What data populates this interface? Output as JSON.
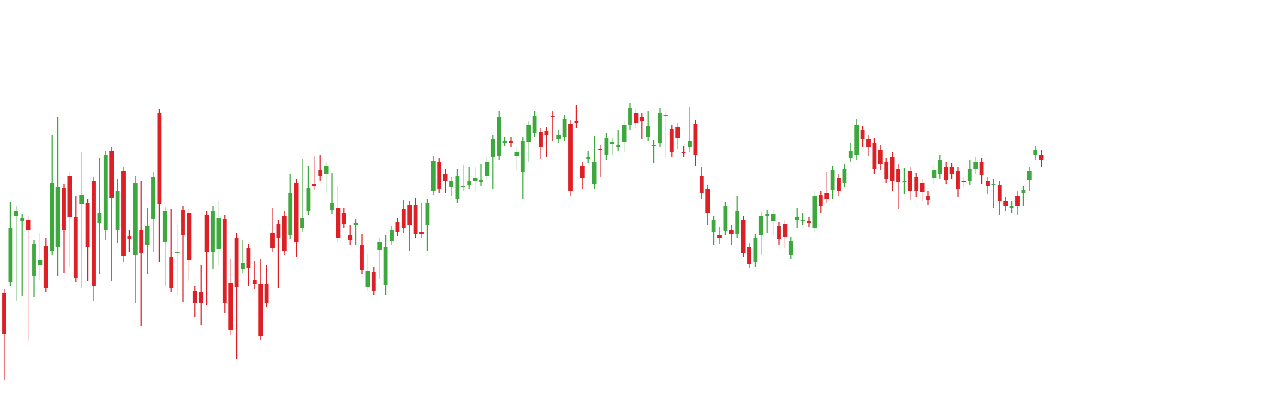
{
  "chart_data": {
    "type": "candlestick",
    "title": "",
    "xlabel": "",
    "ylabel": "",
    "ylim": [
      0,
      591
    ],
    "grid": false,
    "legend": "none",
    "colors": {
      "up": "#3da83d",
      "down": "#dd1f26"
    },
    "candles": [
      [
        413,
        471,
        526,
        530
      ],
      [
        398,
        322,
        291,
        378
      ],
      [
        305,
        297,
        315,
        418
      ],
      [
        312,
        308,
        361,
        412
      ],
      [
        310,
        325,
        377,
        475
      ],
      [
        389,
        344,
        345,
        413
      ],
      [
        374,
        367,
        335,
        389
      ],
      [
        347,
        406,
        342,
        351
      ],
      [
        354,
        258,
        196,
        266
      ],
      [
        348,
        264,
        171,
        384
      ],
      [
        265,
        325,
        267,
        379
      ],
      [
        248,
        306,
        274,
        371
      ],
      [
        306,
        392,
        283,
        387
      ],
      [
        288,
        275,
        220,
        400
      ],
      [
        287,
        349,
        380,
        390
      ],
      [
        256,
        403,
        256,
        418
      ],
      [
        314,
        301,
        229,
        380
      ],
      [
        325,
        219,
        224,
        332
      ],
      [
        213,
        279,
        233,
        391
      ],
      [
        325,
        269,
        258,
        337
      ],
      [
        241,
        361,
        343,
        364
      ],
      [
        333,
        337,
        331,
        349
      ],
      [
        360,
        258,
        254,
        422
      ],
      [
        324,
        357,
        262,
        454
      ],
      [
        346,
        319,
        299,
        381
      ],
      [
        309,
        249,
        349,
        341
      ],
      [
        160,
        288,
        285,
        364
      ],
      [
        342,
        298,
        303,
        398
      ],
      [
        362,
        406,
        301,
        378
      ],
      [
        357,
        355,
        323,
        410
      ],
      [
        296,
        331,
        364,
        420
      ],
      [
        301,
        367,
        362,
        390
      ],
      [
        410,
        427,
        441,
        430
      ],
      [
        412,
        427,
        380,
        452
      ],
      [
        303,
        355,
        358,
        424
      ],
      [
        356,
        297,
        342,
        374
      ],
      [
        351,
        307,
        290,
        369
      ],
      [
        309,
        428,
        426,
        435
      ],
      [
        399,
        466,
        388,
        372
      ],
      [
        335,
        405,
        435,
        500
      ],
      [
        379,
        371,
        344,
        372
      ],
      [
        350,
        378,
        389,
        397
      ],
      [
        395,
        401,
        374,
        381
      ],
      [
        400,
        474,
        393,
        371
      ],
      [
        400,
        427,
        380,
        397
      ],
      [
        329,
        350,
        339,
        299
      ],
      [
        316,
        336,
        369,
        400
      ],
      [
        305,
        354,
        312,
        303
      ],
      [
        331,
        272,
        269,
        252
      ],
      [
        258,
        341,
        347,
        357
      ],
      [
        321,
        308,
        239,
        230
      ],
      [
        297,
        265,
        240,
        247
      ],
      [
        260,
        262,
        226,
        236
      ],
      [
        240,
        248,
        224,
        249
      ],
      [
        246,
        234,
        266,
        234
      ],
      [
        296,
        287,
        250,
        269
      ],
      [
        294,
        335,
        269,
        311
      ],
      [
        300,
        316,
        312,
        316
      ],
      [
        332,
        339,
        324,
        332
      ],
      [
        316,
        315,
        340,
        315
      ],
      [
        346,
        381,
        336,
        358
      ],
      [
        405,
        382,
        389,
        364
      ],
      [
        383,
        410,
        389,
        402
      ],
      [
        353,
        342,
        387,
        348
      ],
      [
        402,
        348,
        338,
        410
      ],
      [
        340,
        325,
        327,
        325
      ],
      [
        313,
        327,
        325,
        325
      ],
      [
        295,
        321,
        322,
        288
      ],
      [
        289,
        318,
        310,
        348
      ],
      [
        289,
        330,
        285,
        321
      ],
      [
        327,
        330,
        293,
        327
      ],
      [
        318,
        286,
        348,
        315
      ],
      [
        269,
        227,
        226,
        226
      ],
      [
        229,
        266,
        230,
        250
      ],
      [
        245,
        256,
        264,
        266
      ],
      [
        264,
        255,
        270,
        262
      ],
      [
        281,
        248,
        244,
        253
      ],
      [
        263,
        262,
        239,
        254
      ],
      [
        261,
        256,
        241,
        241
      ],
      [
        256,
        251,
        263,
        241
      ],
      [
        257,
        254,
        237,
        239
      ],
      [
        248,
        229,
        227,
        242
      ],
      [
        221,
        196,
        234,
        260
      ],
      [
        220,
        165,
        163,
        166
      ],
      [
        200,
        199,
        200,
        200
      ],
      [
        199,
        199,
        199,
        202
      ],
      [
        220,
        214,
        234,
        233
      ],
      [
        243,
        199,
        225,
        274
      ],
      [
        200,
        177,
        217,
        223
      ],
      [
        187,
        163,
        171,
        187
      ],
      [
        186,
        207,
        201,
        218
      ],
      [
        185,
        191,
        186,
        215
      ],
      [
        163,
        163,
        165,
        193
      ],
      [
        196,
        190,
        195,
        192
      ],
      [
        193,
        168,
        170,
        170
      ],
      [
        175,
        270,
        181,
        267
      ],
      [
        170,
        174,
        154,
        160
      ],
      [
        234,
        251,
        259,
        261
      ],
      [
        224,
        221,
        219,
        224
      ],
      [
        260,
        229,
        198,
        205
      ],
      [
        210,
        210,
        235,
        244
      ],
      [
        219,
        194,
        216,
        219
      ],
      [
        203,
        200,
        202,
        213
      ],
      [
        207,
        204,
        195,
        189
      ],
      [
        200,
        176,
        203,
        209
      ],
      [
        177,
        152,
        151,
        152
      ],
      [
        160,
        174,
        174,
        161
      ],
      [
        165,
        170,
        176,
        190
      ],
      [
        193,
        178,
        183,
        162
      ],
      [
        206,
        204,
        224,
        213
      ],
      [
        201,
        159,
        172,
        169
      ],
      [
        164,
        162,
        213,
        216
      ],
      [
        182,
        215,
        209,
        203
      ],
      [
        179,
        194,
        199,
        204
      ],
      [
        214,
        215,
        212,
        213
      ],
      [
        208,
        199,
        157,
        178
      ],
      [
        175,
        219,
        228,
        205
      ],
      [
        248,
        272,
        275,
        242
      ],
      [
        267,
        300,
        311,
        301
      ],
      [
        327,
        310,
        339,
        315
      ],
      [
        332,
        335,
        326,
        338
      ],
      [
        326,
        291,
        297,
        298
      ],
      [
        324,
        330,
        336,
        339
      ],
      [
        330,
        298,
        298,
        283
      ],
      [
        310,
        357,
        335,
        348
      ],
      [
        349,
        372,
        355,
        362
      ],
      [
        370,
        336,
        359,
        367
      ],
      [
        331,
        305,
        314,
        354
      ],
      [
        304,
        302,
        303,
        322
      ],
      [
        312,
        302,
        303,
        325
      ],
      [
        319,
        337,
        340,
        337
      ],
      [
        316,
        334,
        344,
        333
      ],
      [
        359,
        340,
        358,
        345
      ],
      [
        311,
        306,
        316,
        300
      ],
      [
        311,
        310,
        311,
        307
      ],
      [
        312,
        314,
        312,
        313
      ],
      [
        321,
        276,
        318,
        295
      ],
      [
        275,
        291,
        295,
        281
      ],
      [
        272,
        281,
        263,
        249
      ],
      [
        268,
        240,
        253,
        274
      ],
      [
        251,
        270,
        271,
        259
      ],
      [
        258,
        238,
        237,
        247
      ],
      [
        223,
        213,
        208,
        210
      ],
      [
        219,
        176,
        174,
        178
      ],
      [
        184,
        196,
        202,
        197
      ],
      [
        196,
        208,
        197,
        214
      ],
      [
        201,
        238,
        200,
        240
      ],
      [
        211,
        232,
        223,
        234
      ],
      [
        229,
        252,
        250,
        245
      ],
      [
        221,
        255,
        259,
        263
      ],
      [
        238,
        257,
        268,
        289
      ],
      [
        257,
        255,
        243,
        268
      ],
      [
        241,
        270,
        264,
        276
      ],
      [
        250,
        270,
        256,
        272
      ],
      [
        258,
        271,
        271,
        277
      ],
      [
        276,
        282,
        281,
        283
      ],
      [
        251,
        240,
        244,
        253
      ],
      [
        246,
        225,
        241,
        235
      ],
      [
        235,
        254,
        248,
        254
      ],
      [
        236,
        245,
        246,
        244
      ],
      [
        241,
        266,
        260,
        272
      ],
      [
        255,
        255,
        258,
        258
      ],
      [
        255,
        239,
        241,
        231
      ],
      [
        239,
        228,
        236,
        236
      ],
      [
        229,
        247,
        253,
        245
      ],
      [
        256,
        263,
        262,
        268
      ],
      [
        261,
        259,
        287,
        281
      ],
      [
        261,
        283,
        290,
        297
      ],
      [
        284,
        290,
        289,
        291
      ],
      [
        294,
        291,
        290,
        289
      ],
      [
        276,
        290,
        297,
        289
      ],
      [
        272,
        268,
        273,
        285
      ],
      [
        254,
        241,
        264,
        260
      ],
      [
        218,
        212,
        217,
        219
      ],
      [
        218,
        226,
        230,
        226
      ]
    ]
  }
}
